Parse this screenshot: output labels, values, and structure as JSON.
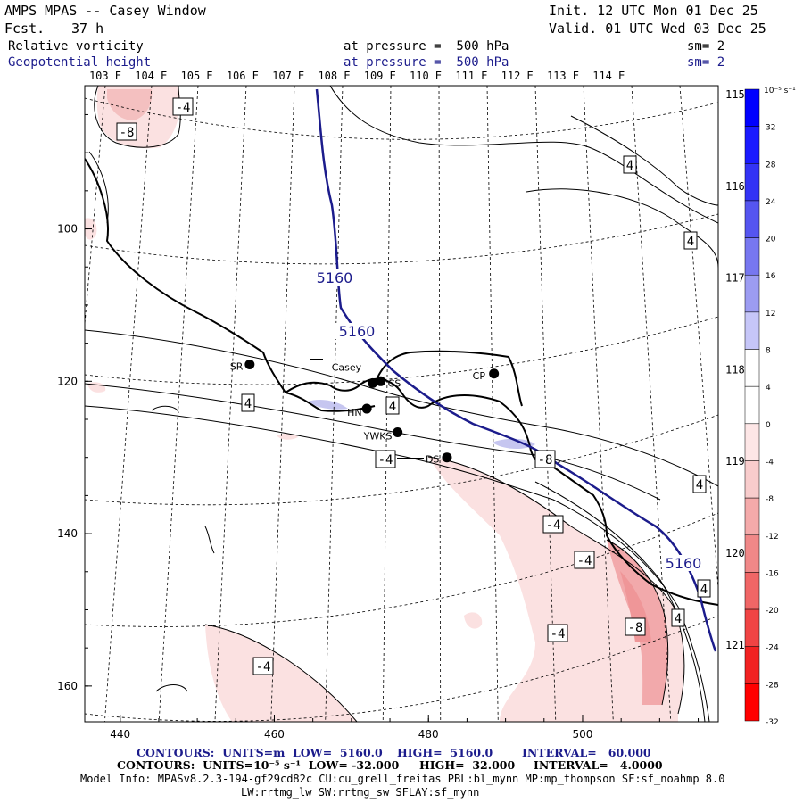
{
  "header": {
    "title": "AMPS MPAS -- Casey Window",
    "forecast_label": "Fcst.",
    "forecast_hours": "37 h",
    "init": "Init. 12 UTC Mon 01 Dec 25",
    "valid": "Valid. 01 UTC Wed 03 Dec 25",
    "field1_name": "Relative vorticity",
    "field1_pressure": "at pressure =  500 hPa",
    "field1_sm": "sm= 2",
    "field2_name": "Geopotential height",
    "field2_pressure": "at pressure =  500 hPa",
    "field2_sm": "sm= 2"
  },
  "colors": {
    "height_contour": "#1c1c8c",
    "vorticity_contour": "#000000",
    "negative_shade_light": "#fbe1e1",
    "negative_shade_mid": "#f2a9ab",
    "positive_shade_light": "#c6c6f0"
  },
  "chart_data": {
    "type": "heatmap",
    "title": "AMPS MPAS -- Casey Window",
    "x_ticks": [
      "440",
      "460",
      "480",
      "500"
    ],
    "y_ticks": [
      "100",
      "120",
      "140",
      "160"
    ],
    "top_longitude_labels": [
      "103 E",
      "104 E",
      "105 E",
      "106 E",
      "107 E",
      "108 E",
      "109 E",
      "110 E",
      "111 E",
      "112 E",
      "113 E",
      "114 E"
    ],
    "right_longitude_labels": [
      "115 E",
      "116 E",
      "117 E",
      "118 E",
      "119 E",
      "120 E",
      "121 E"
    ],
    "height_contour_labels": [
      "5160",
      "5160",
      "5160"
    ],
    "vorticity_contour_labels": [
      "-4",
      "-8",
      "4",
      "4",
      "4",
      "4",
      "-4",
      "-8",
      "-4",
      "4",
      "-4",
      "-4",
      "4",
      "-8",
      "4",
      "-4"
    ],
    "stations": [
      {
        "name": "SR",
        "x": 456.8,
        "y": 117.8
      },
      {
        "name": "Casey",
        "x": 472.3,
        "y": 119.3
      },
      {
        "name": "CS",
        "x": 473.8,
        "y": 120.0
      },
      {
        "name": "CP",
        "x": 488.5,
        "y": 119.0
      },
      {
        "name": "HN",
        "x": 472.0,
        "y": 123.6
      },
      {
        "name": "YWKS",
        "x": 476.0,
        "y": 126.7
      },
      {
        "name": "DS",
        "x": 482.4,
        "y": 130.0
      }
    ],
    "colorbar": {
      "unit": "10⁻⁵ s⁻¹",
      "labels": [
        "32",
        "28",
        "24",
        "20",
        "16",
        "12",
        "8",
        "4",
        "0",
        "-4",
        "-8",
        "-12",
        "-16",
        "-20",
        "-24",
        "-28",
        "-32"
      ],
      "colors": [
        "#0000ff",
        "#1a1aff",
        "#3333f5",
        "#5555f0",
        "#7777f0",
        "#9c9cf2",
        "#c6c6f8",
        "#ffffff",
        "#ffffff",
        "#fde6e6",
        "#f8cccc",
        "#f4aaaa",
        "#f08888",
        "#f06666",
        "#f04444",
        "#f22222",
        "#ff0000"
      ]
    },
    "contour_info": {
      "height": {
        "units": "m",
        "low": "5160.0",
        "high": "5160.0",
        "interval": "60.000"
      },
      "vorticity": {
        "units": "10⁻⁵ s⁻¹",
        "low": "-32.000",
        "high": "32.000",
        "interval": "4.0000"
      }
    }
  },
  "footer": {
    "line1_units_label": "CONTOURS:  UNITS=m  LOW=  5160.0",
    "line1_high": "HIGH=  5160.0",
    "line1_interval": "INTERVAL=   60.000",
    "line2_units_label": "CONTOURS:  UNITS=10⁻⁵ s⁻¹  LOW= -32.000",
    "line2_high": "HIGH=  32.000",
    "line2_interval": "INTERVAL=   4.0000",
    "model_info": "Model Info: MPASv8.2.3-194-gf29cd82c CU:cu_grell_freitas PBL:bl_mynn MP:mp_thompson SF:sf_noahmp 8.0",
    "model_info2": "LW:rrtmg_lw SW:rrtmg_sw SFLAY:sf_mynn"
  }
}
